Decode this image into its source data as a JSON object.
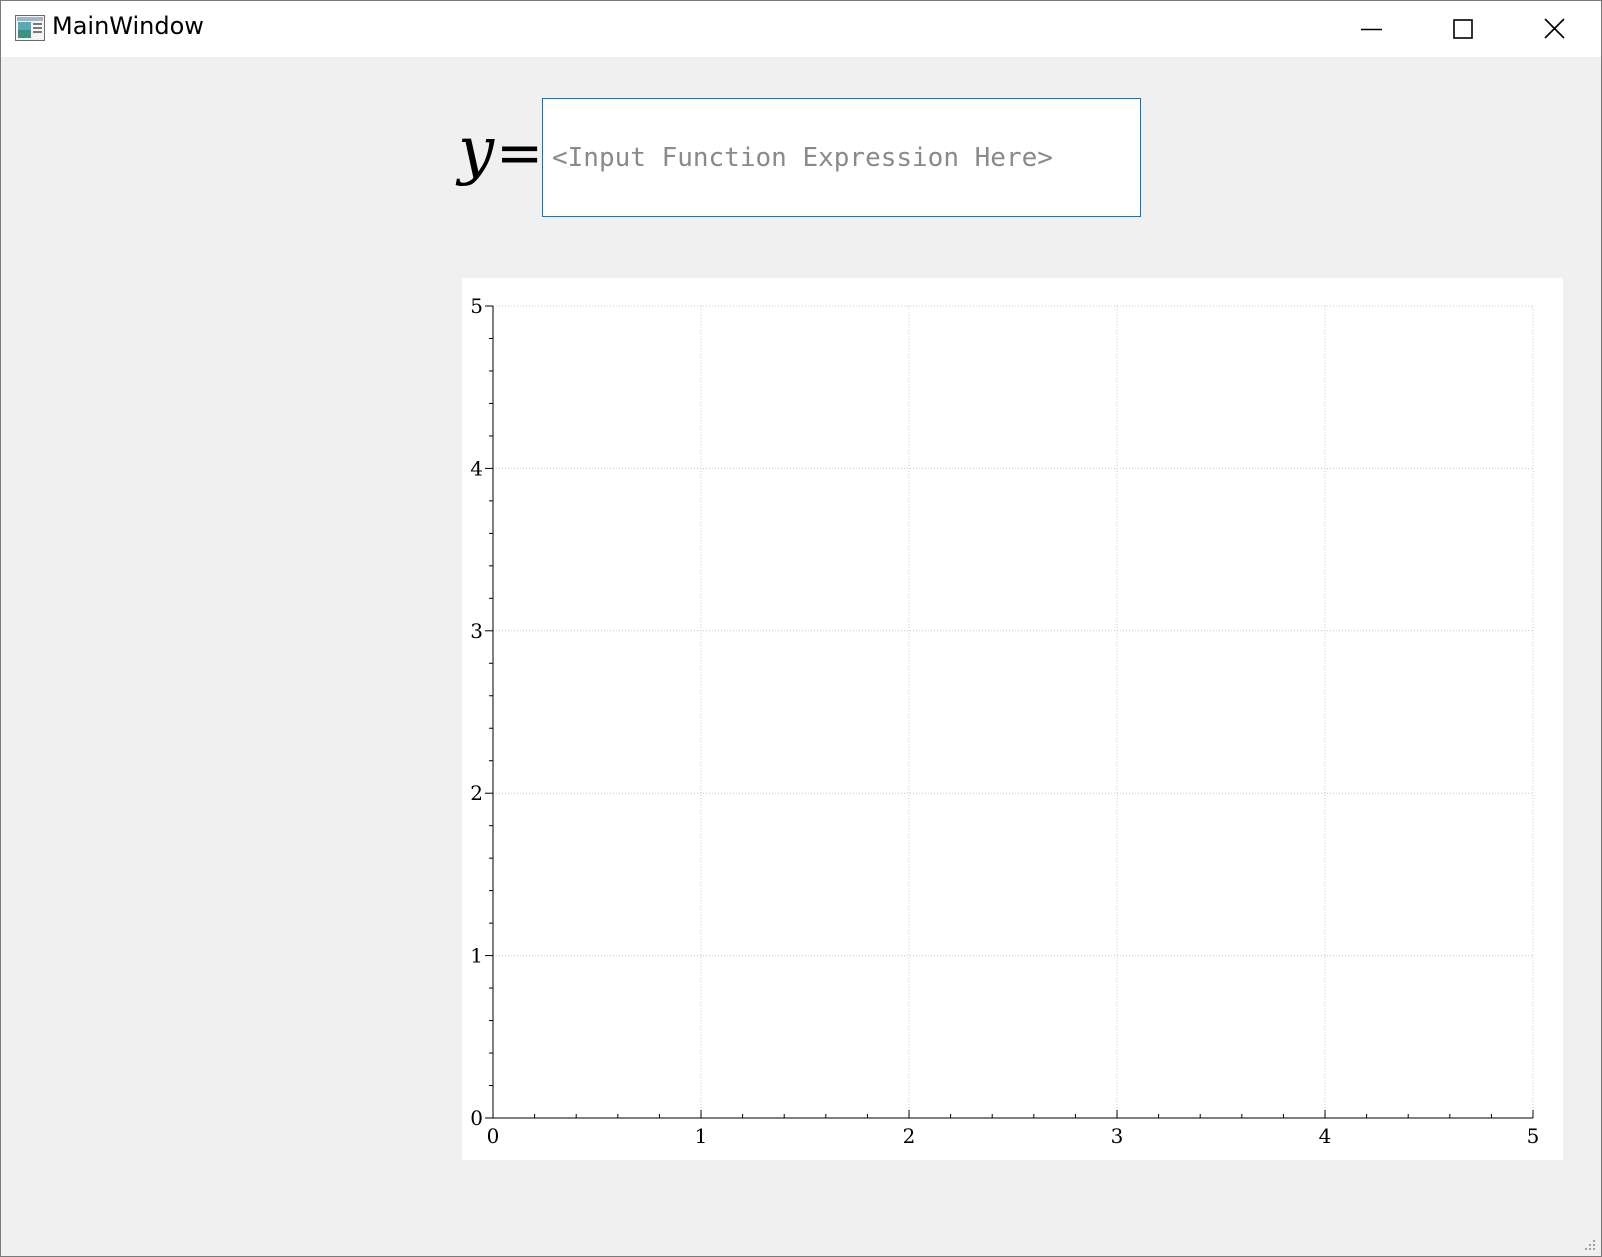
{
  "window": {
    "title": "MainWindow",
    "icon": "app-window-icon",
    "controls": {
      "minimize_icon": "minimize-icon",
      "maximize_icon": "maximize-icon",
      "close_icon": "close-icon"
    }
  },
  "expression": {
    "label_var": "y",
    "label_eq": "=",
    "value": "",
    "placeholder": "<Input Function Expression Here>"
  },
  "chart_data": {
    "type": "line",
    "series": [],
    "xlim": [
      0,
      5
    ],
    "ylim": [
      0,
      5
    ],
    "x_ticks": [
      "0",
      "1",
      "2",
      "3",
      "4",
      "5"
    ],
    "y_ticks": [
      "0",
      "1",
      "2",
      "3",
      "4",
      "5"
    ],
    "grid": true,
    "minor_ticks_per_major": 5
  },
  "colors": {
    "input_border": "#0078d7",
    "placeholder": "#8a8a8a",
    "grid": "#c8c8c8",
    "axis": "#000000"
  }
}
